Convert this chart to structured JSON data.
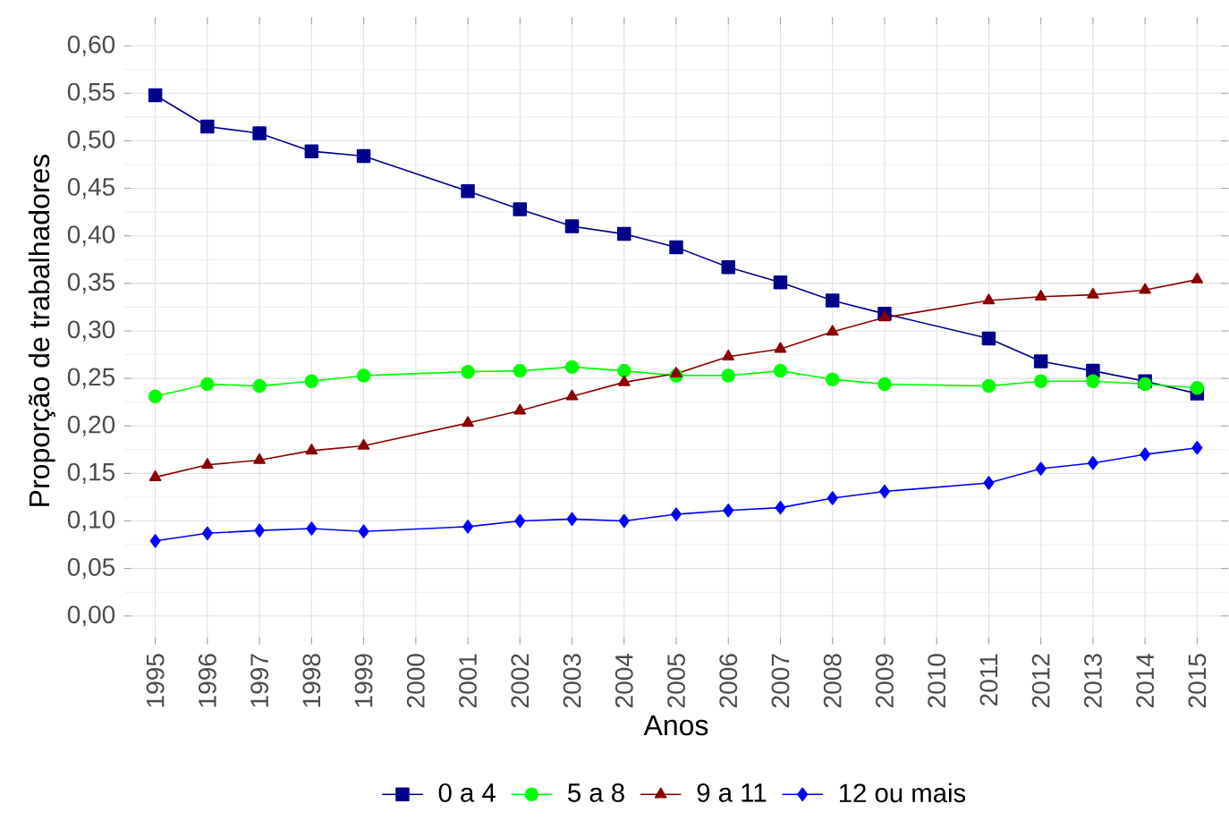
{
  "chart_data": {
    "type": "line",
    "xlabel": "Anos",
    "ylabel": "Proporção de trabalhadores",
    "categories": [
      "1995",
      "1996",
      "1997",
      "1998",
      "1999",
      "2000",
      "2001",
      "2002",
      "2003",
      "2004",
      "2005",
      "2006",
      "2007",
      "2008",
      "2009",
      "2010",
      "2011",
      "2012",
      "2013",
      "2014",
      "2015"
    ],
    "series": [
      {
        "name": "0 a 4",
        "color": "#00008b",
        "marker": "square",
        "values": [
          0.548,
          0.515,
          0.508,
          0.489,
          0.484,
          null,
          0.447,
          0.428,
          0.41,
          0.402,
          0.388,
          0.367,
          0.351,
          0.332,
          0.318,
          null,
          0.292,
          0.268,
          0.258,
          0.247,
          0.234
        ]
      },
      {
        "name": "5 a 8",
        "color": "#00ff00",
        "marker": "circle",
        "values": [
          0.231,
          0.244,
          0.242,
          0.247,
          0.253,
          null,
          0.257,
          0.258,
          0.262,
          0.258,
          0.253,
          0.253,
          0.258,
          0.249,
          0.244,
          null,
          0.242,
          0.247,
          0.247,
          0.244,
          0.24
        ]
      },
      {
        "name": "9 a 11",
        "color": "#8b0000",
        "marker": "triangle",
        "values": [
          0.146,
          0.159,
          0.164,
          0.174,
          0.179,
          null,
          0.203,
          0.216,
          0.231,
          0.246,
          0.255,
          0.273,
          0.281,
          0.299,
          0.314,
          null,
          0.332,
          0.336,
          0.338,
          0.343,
          0.354
        ]
      },
      {
        "name": "12 ou mais",
        "color": "#0000ff",
        "marker": "diamond",
        "values": [
          0.079,
          0.087,
          0.09,
          0.092,
          0.089,
          null,
          0.094,
          0.1,
          0.102,
          0.1,
          0.107,
          0.111,
          0.114,
          0.124,
          0.131,
          null,
          0.14,
          0.155,
          0.161,
          0.17,
          0.177
        ]
      }
    ],
    "ylim": [
      -0.03,
      0.63
    ],
    "yticks": [
      {
        "value": 0,
        "label": "0,00"
      },
      {
        "value": 0.05,
        "label": "0,05"
      },
      {
        "value": 0.1,
        "label": "0,10"
      },
      {
        "value": 0.15,
        "label": "0,15"
      },
      {
        "value": 0.2,
        "label": "0,20"
      },
      {
        "value": 0.25,
        "label": "0,25"
      },
      {
        "value": 0.3,
        "label": "0,30"
      },
      {
        "value": 0.35,
        "label": "0,35"
      },
      {
        "value": 0.4,
        "label": "0,40"
      },
      {
        "value": 0.45,
        "label": "0,45"
      },
      {
        "value": 0.5,
        "label": "0,50"
      },
      {
        "value": 0.55,
        "label": "0,55"
      },
      {
        "value": 0.6,
        "label": "0,60"
      }
    ],
    "grid": true,
    "legend": "bottom",
    "line_style": "solid"
  }
}
